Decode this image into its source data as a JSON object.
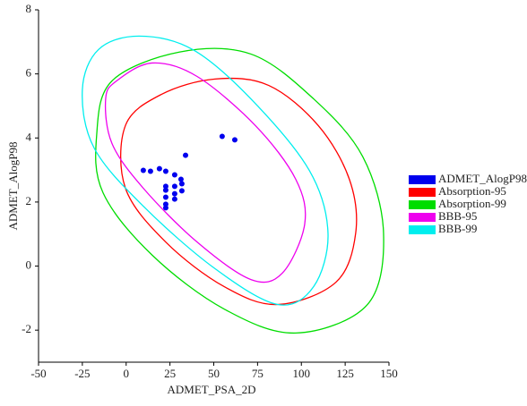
{
  "chart_data": {
    "type": "scatter",
    "x_label": "ADMET_PSA_2D",
    "y_label": "ADMET_AlogP98",
    "xlim": [
      -50,
      150
    ],
    "xticks": [
      -50,
      -25,
      0,
      25,
      50,
      75,
      100,
      125,
      150
    ],
    "ylim": [
      -3,
      8
    ],
    "yticks": [
      -2,
      0,
      2,
      4,
      6,
      8
    ],
    "legend": "right",
    "series": [
      {
        "name": "ADMET_AlogP98",
        "color": "#0000ee",
        "type": "scatter",
        "x": [
          9.8,
          13.9,
          19,
          22.6,
          27.7,
          31.3,
          22.6,
          22.6,
          22.6,
          22.6,
          22.6,
          27.7,
          27.7,
          27.7,
          31.8,
          31.8,
          33.9,
          54.8,
          62
        ],
        "values": [
          2.99,
          2.96,
          3.04,
          2.96,
          2.85,
          2.71,
          2.49,
          2.37,
          2.15,
          1.93,
          1.82,
          2.49,
          2.26,
          2.09,
          2.57,
          2.35,
          3.46,
          4.05,
          3.94
        ]
      },
      {
        "name": "Absorption-95",
        "color": "#ff0000",
        "type": "ellipse",
        "x": [
          20.1,
          50.7,
          81.4,
          109.6,
          127.4,
          131,
          119.8,
          86.5,
          55.9,
          22.6,
          -0.4,
          -0.4
        ],
        "values": [
          5.36,
          5.84,
          5.64,
          4.39,
          2.71,
          1.03,
          -0.5,
          -1.2,
          -0.64,
          0.75,
          2.43,
          4.39
        ]
      },
      {
        "name": "Absorption-99",
        "color": "#00dd00",
        "type": "ellipse",
        "x": [
          -8.1,
          30.3,
          71.2,
          107,
          135.1,
          146.9,
          137.7,
          96.8,
          55.9,
          14.9,
          -13.2,
          -16.8
        ],
        "values": [
          5.78,
          6.68,
          6.62,
          5.22,
          3.41,
          1.03,
          -1.2,
          -2.09,
          -1.34,
          0.34,
          2.29,
          4.11
        ]
      },
      {
        "name": "BBB-95",
        "color": "#ee00ee",
        "type": "ellipse",
        "x": [
          -5.5,
          14.9,
          40.5,
          73.7,
          96.8,
          101.9,
          89.1,
          71.2,
          40.5,
          9.8,
          -8.1,
          -11.7
        ],
        "values": [
          5.78,
          6.34,
          5.92,
          4.39,
          2.71,
          1.31,
          -0.22,
          -0.42,
          0.75,
          2.43,
          3.83,
          5.22
        ]
      },
      {
        "name": "BBB-99",
        "color": "#00eeee",
        "type": "ellipse",
        "x": [
          -15.8,
          7.3,
          38,
          71.2,
          104.5,
          115.2,
          107,
          86.5,
          50.7,
          9.8,
          -18.3,
          -25
        ],
        "values": [
          6.76,
          7.18,
          6.76,
          5.22,
          2.99,
          1.03,
          -0.64,
          -1.2,
          -0.08,
          1.87,
          3.69,
          5.5
        ]
      }
    ]
  }
}
